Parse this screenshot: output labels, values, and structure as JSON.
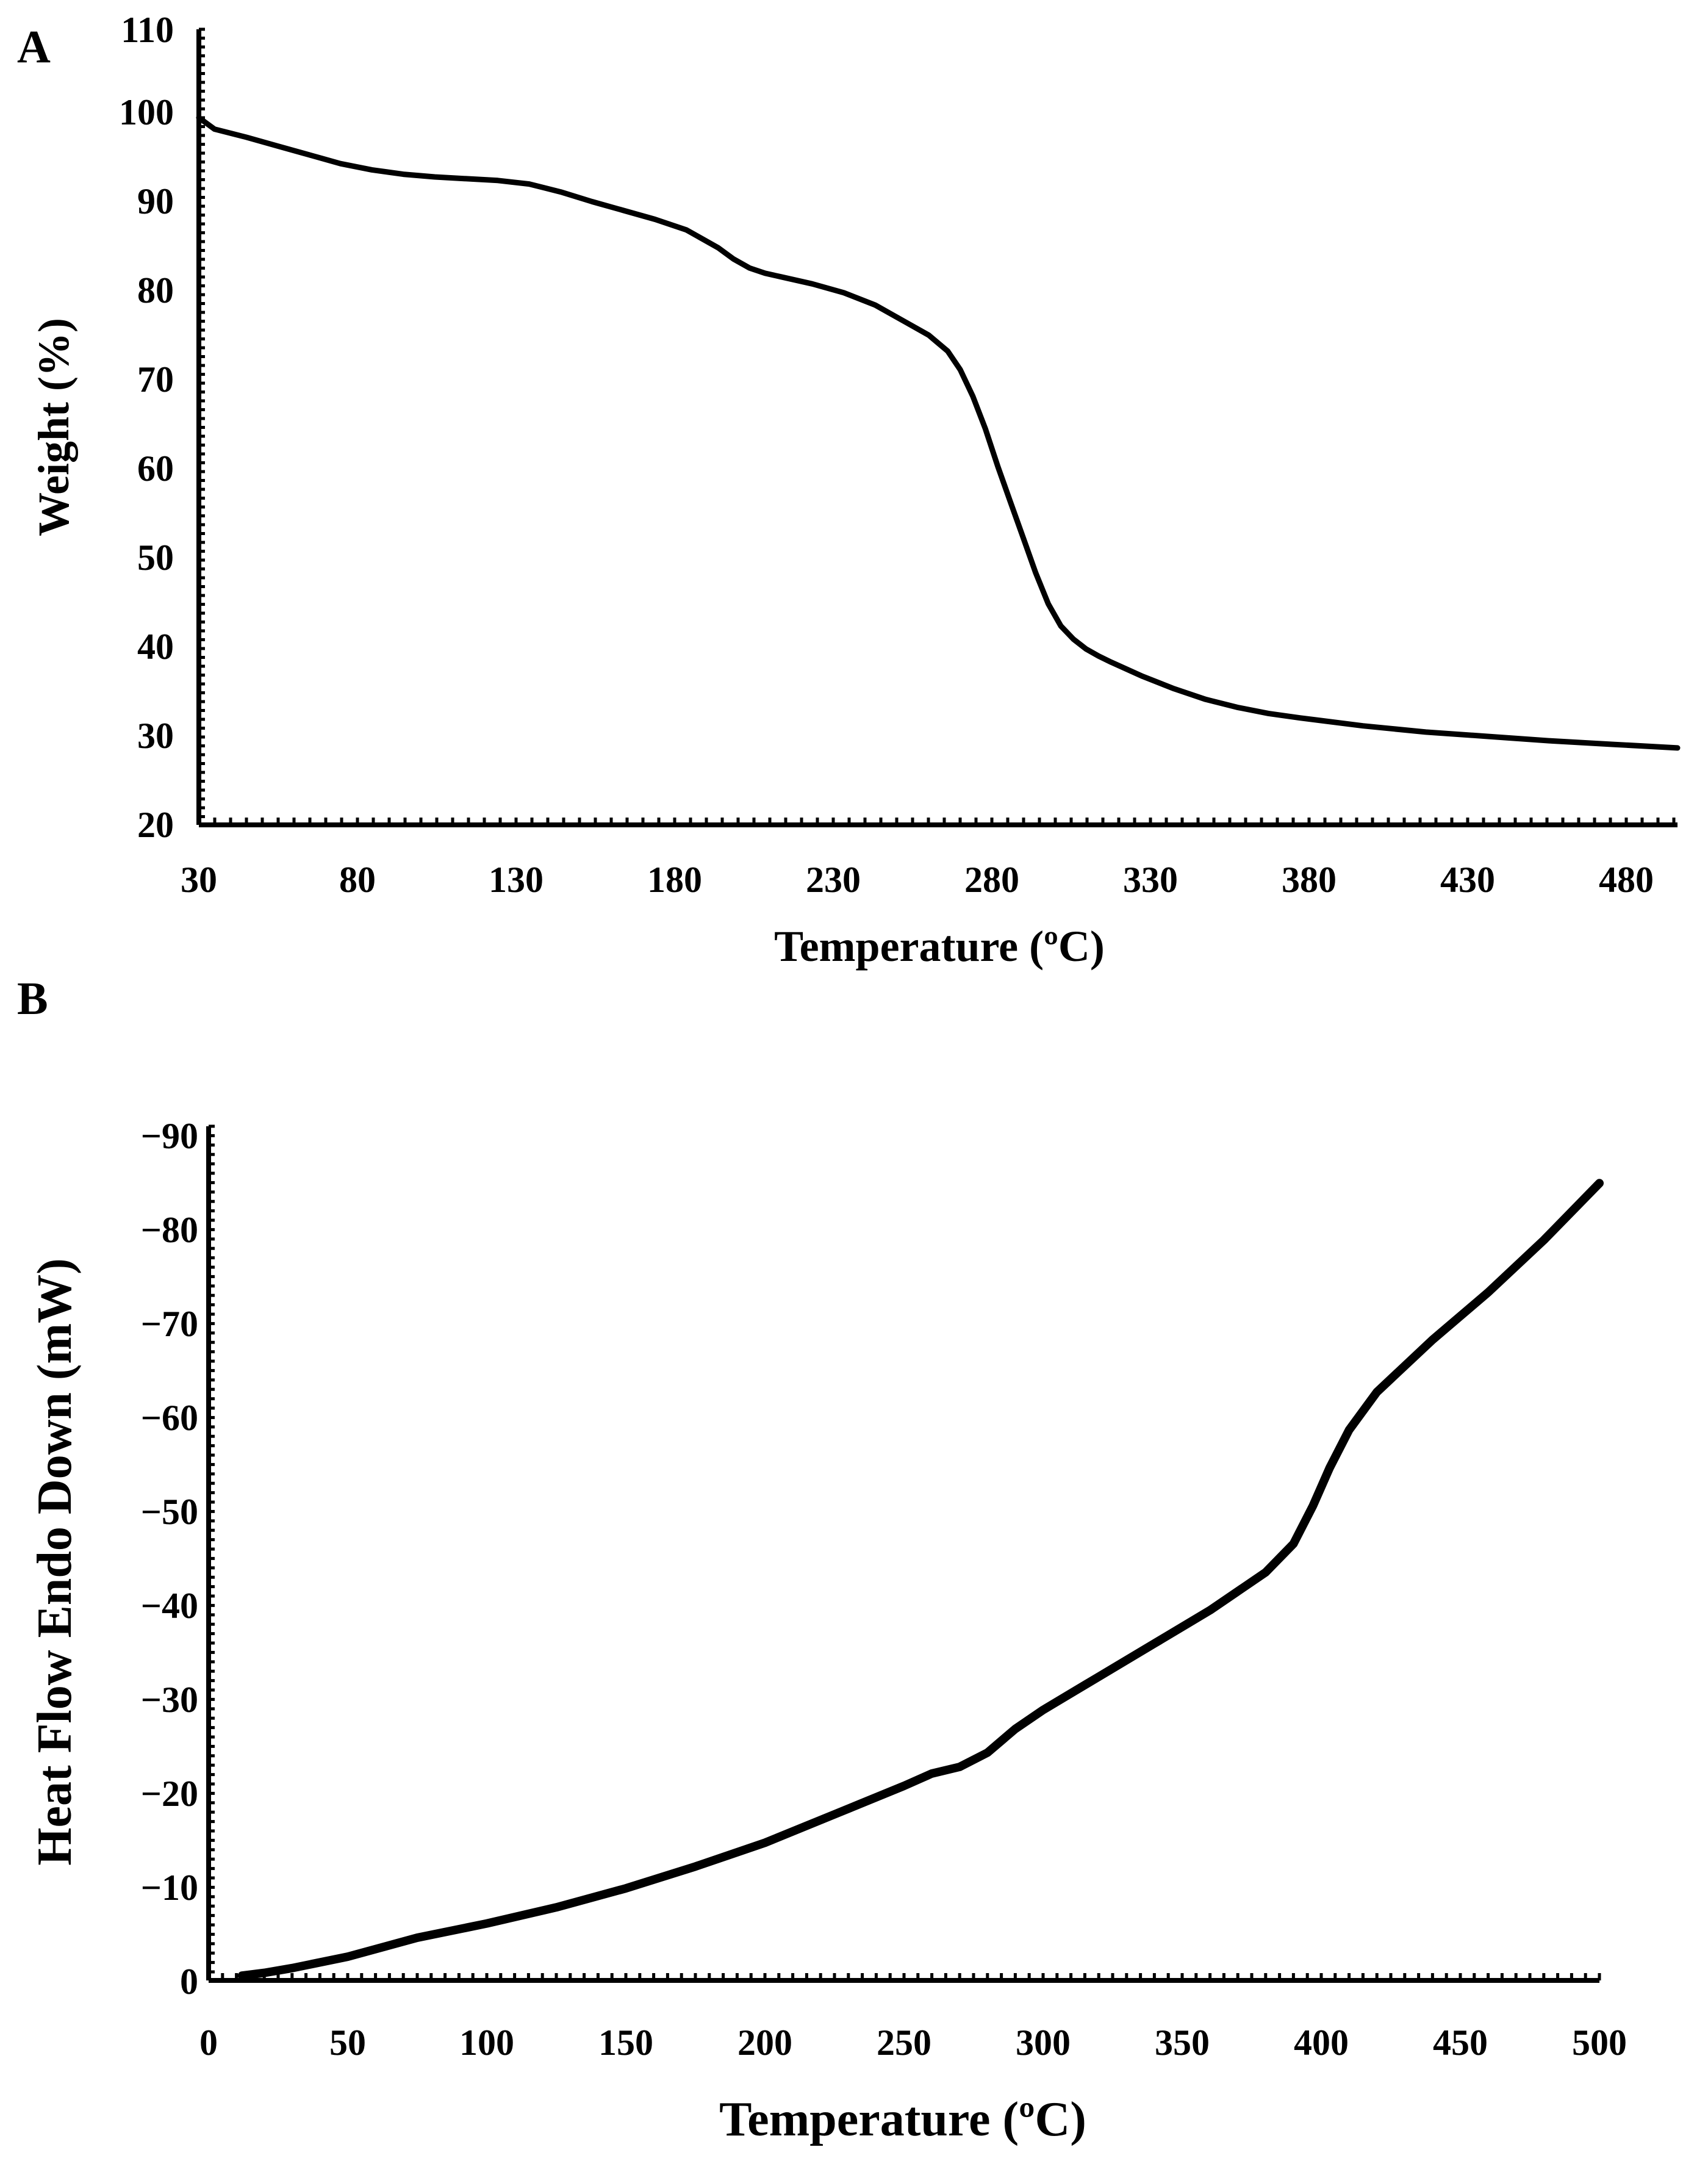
{
  "chart_data": [
    {
      "type": "line",
      "panel_label": "A",
      "title": "",
      "xlabel": "Temperature (ºC)",
      "ylabel": "Weight (%)",
      "xlim": [
        30,
        500
      ],
      "ylim": [
        20,
        110
      ],
      "xticks": [
        "30",
        "80",
        "130",
        "180",
        "230",
        "280",
        "330",
        "380",
        "430",
        "480"
      ],
      "yticks": [
        "20",
        "30",
        "40",
        "50",
        "60",
        "70",
        "80",
        "90",
        "100",
        "110"
      ],
      "grid": false,
      "series": [
        {
          "name": "Weight",
          "x": [
            30,
            35,
            45,
            55,
            65,
            75,
            85,
            95,
            105,
            115,
            125,
            135,
            145,
            155,
            165,
            175,
            185,
            195,
            200,
            205,
            210,
            215,
            225,
            235,
            245,
            255,
            262,
            268,
            272,
            276,
            280,
            284,
            288,
            292,
            296,
            300,
            304,
            308,
            312,
            316,
            320,
            330,
            340,
            350,
            360,
            370,
            380,
            400,
            420,
            440,
            460,
            480,
            500
          ],
          "y": [
            100,
            98.7,
            97.8,
            96.8,
            95.8,
            94.8,
            94.1,
            93.6,
            93.3,
            93.1,
            92.9,
            92.5,
            91.6,
            90.5,
            89.5,
            88.5,
            87.3,
            85.3,
            84.0,
            83.0,
            82.4,
            82.0,
            81.2,
            80.2,
            78.8,
            76.8,
            75.4,
            73.6,
            71.5,
            68.5,
            64.8,
            60.5,
            56.5,
            52.5,
            48.5,
            45.0,
            42.5,
            41.0,
            39.9,
            39.1,
            38.4,
            36.8,
            35.4,
            34.2,
            33.3,
            32.6,
            32.1,
            31.2,
            30.5,
            30.0,
            29.5,
            29.1,
            28.7
          ]
        }
      ]
    },
    {
      "type": "line",
      "panel_label": "B",
      "title": "",
      "xlabel": "Temperature (ºC)",
      "ylabel": "Heat Flow Endo Down (mW)",
      "xlim": [
        0,
        500
      ],
      "ylim": [
        0,
        -90
      ],
      "xticks": [
        "0",
        "50",
        "100",
        "150",
        "200",
        "250",
        "300",
        "350",
        "400",
        "450",
        "500"
      ],
      "yticks": [
        "0",
        "−10",
        "−20",
        "−30",
        "−40",
        "−50",
        "−60",
        "−70",
        "−80",
        "−90"
      ],
      "grid": false,
      "series": [
        {
          "name": "Heat Flow",
          "x": [
            12,
            20,
            30,
            50,
            75,
            100,
            125,
            150,
            175,
            200,
            225,
            250,
            260,
            270,
            280,
            290,
            300,
            320,
            340,
            360,
            380,
            390,
            397,
            403,
            410,
            420,
            440,
            460,
            480,
            500
          ],
          "y": [
            -0.5,
            -0.8,
            -1.3,
            -2.5,
            -4.5,
            -6,
            -7.7,
            -9.7,
            -12,
            -14.5,
            -17.5,
            -20.5,
            -21.8,
            -22.5,
            -24,
            -26.5,
            -28.5,
            -32,
            -35.5,
            -39,
            -43,
            -46,
            -50,
            -54,
            -58,
            -62,
            -67.5,
            -72.5,
            -78,
            -84
          ]
        }
      ]
    }
  ]
}
